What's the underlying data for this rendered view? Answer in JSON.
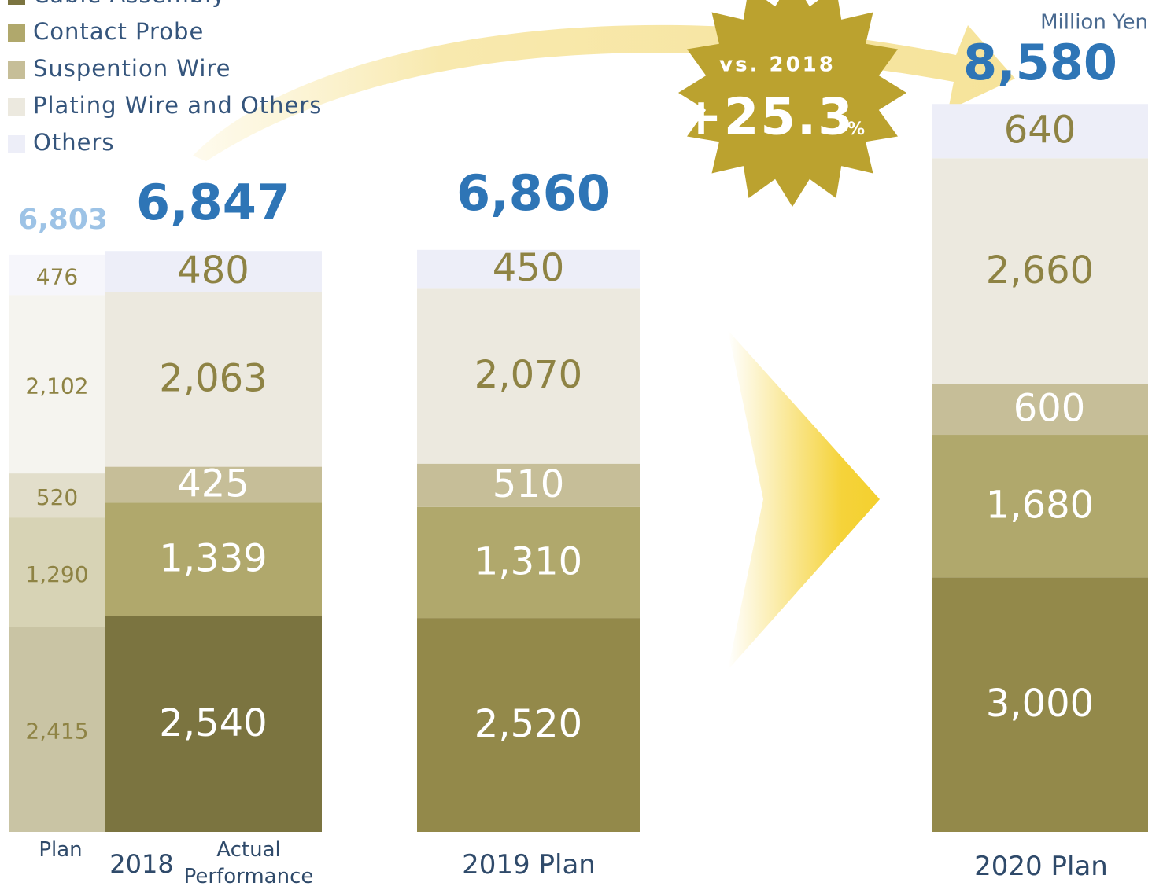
{
  "chart_data": {
    "type": "stacked-bar",
    "unit_label": "Million Yen",
    "annotation_title": "vs. 2018",
    "annotation": "+25.3",
    "annotation_unit": "%",
    "group_label": "2018",
    "categories": [
      "Plan",
      "Actual Performance",
      "2019 Plan",
      "2020 Plan"
    ],
    "totals": [
      6803,
      6847,
      6860,
      8580
    ],
    "total_labels": [
      "6,803",
      "6,847",
      "6,860",
      "8,580"
    ],
    "series": [
      {
        "name": "Cable Assembly",
        "color": "#93894a",
        "values": [
          2415,
          2540,
          2520,
          3000
        ],
        "value_labels": [
          "2,415",
          "2,540",
          "2,520",
          "3,000"
        ]
      },
      {
        "name": "Contact Probe",
        "color": "#b0a86c",
        "values": [
          1290,
          1339,
          1310,
          1680
        ],
        "value_labels": [
          "1,290",
          "1,339",
          "1,310",
          "1,680"
        ]
      },
      {
        "name": "Suspention Wire",
        "color": "#c6be98",
        "values": [
          520,
          425,
          510,
          600
        ],
        "value_labels": [
          "520",
          "425",
          "510",
          "600"
        ]
      },
      {
        "name": "Plating Wire and Others",
        "color": "#ece9df",
        "values": [
          2102,
          2063,
          2070,
          2660
        ],
        "value_labels": [
          "2,102",
          "2,063",
          "2,070",
          "2,660"
        ]
      },
      {
        "name": "Others",
        "color": "#edeef8",
        "values": [
          476,
          480,
          450,
          640
        ],
        "value_labels": [
          "476",
          "480",
          "450",
          "640"
        ]
      }
    ]
  }
}
